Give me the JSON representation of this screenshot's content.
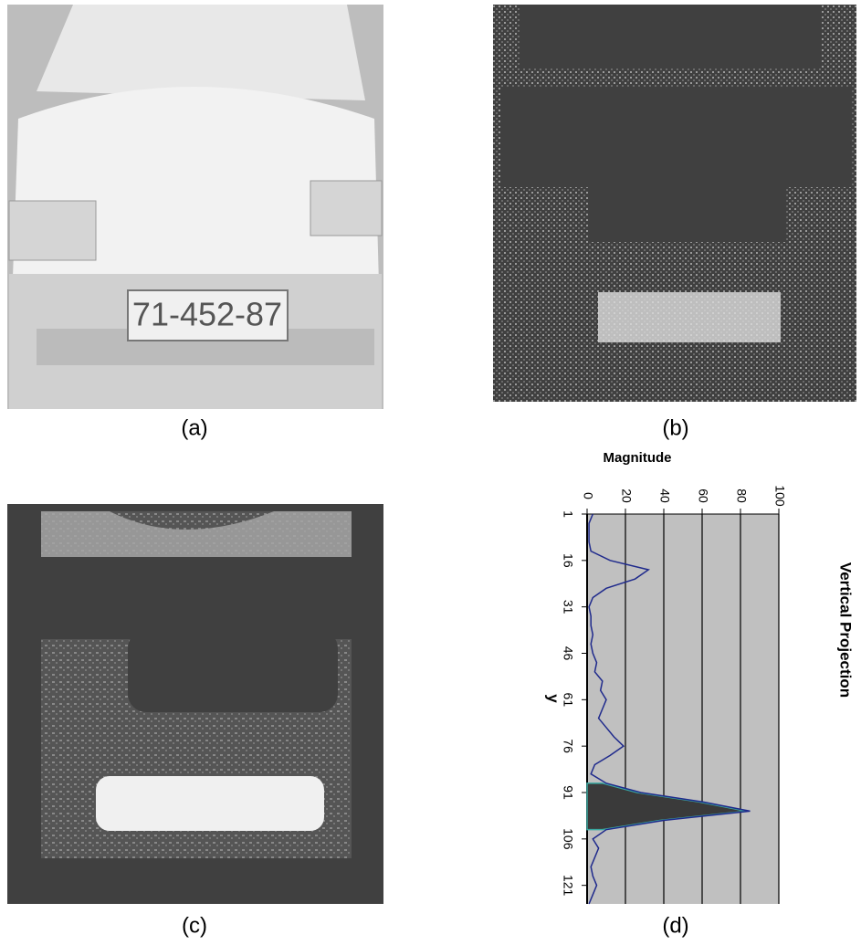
{
  "figure": {
    "labels": [
      "(a)",
      "(b)",
      "(c)",
      "(d)"
    ],
    "plate_text": "71-452-87"
  },
  "chart_data": {
    "type": "line",
    "title": "Vertical Projection",
    "x_label": "y",
    "y_label": "Magnitude",
    "x": [
      1,
      4,
      7,
      10,
      13,
      16,
      19,
      22,
      25,
      28,
      31,
      34,
      37,
      40,
      43,
      46,
      49,
      52,
      55,
      58,
      61,
      64,
      67,
      70,
      73,
      76,
      79,
      82,
      85,
      88,
      91,
      94,
      97,
      100,
      103,
      106,
      109,
      112,
      115,
      118,
      121,
      124,
      127
    ],
    "series": [
      {
        "color": "#1f2a8c",
        "values": [
          3,
          1,
          1,
          1,
          2,
          12,
          32,
          25,
          10,
          3,
          1,
          2,
          2,
          3,
          2,
          3,
          5,
          4,
          8,
          7,
          10,
          8,
          6,
          10,
          14,
          19,
          12,
          4,
          2,
          10,
          28,
          60,
          85,
          40,
          10,
          3,
          6,
          4,
          2,
          3,
          5,
          3,
          1
        ]
      },
      {
        "color": "#3a3a3a",
        "fill": true,
        "values": [
          null,
          null,
          null,
          null,
          null,
          null,
          null,
          null,
          null,
          null,
          null,
          null,
          null,
          null,
          null,
          null,
          null,
          null,
          null,
          null,
          null,
          null,
          null,
          null,
          null,
          null,
          null,
          null,
          null,
          8,
          26,
          58,
          83,
          38,
          8,
          null,
          null,
          null,
          null,
          null,
          null,
          null,
          null
        ]
      }
    ],
    "xlim": [
      1,
      127
    ],
    "xticks": [
      1,
      16,
      31,
      46,
      61,
      76,
      91,
      106,
      121
    ],
    "ylim": [
      0,
      100
    ],
    "yticks": [
      0,
      20,
      40,
      60,
      80,
      100
    ],
    "grid": true,
    "background": "#c0c0c0"
  }
}
